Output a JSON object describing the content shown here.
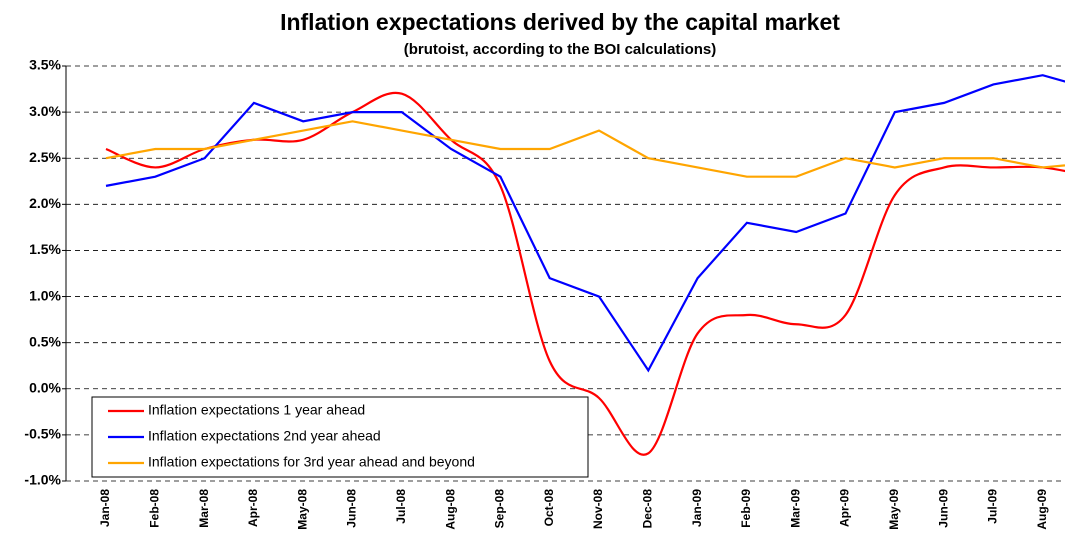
{
  "chart_data": {
    "type": "line",
    "title": "Inflation expectations derived by the capital market",
    "subtitle": "(brutoist, according to the BOI calculations)",
    "categories": [
      "Jan-08",
      "Feb-08",
      "Mar-08",
      "Apr-08",
      "May-08",
      "Jun-08",
      "Jul-08",
      "Aug-08",
      "Sep-08",
      "Oct-08",
      "Nov-08",
      "Dec-08",
      "Jan-09",
      "Feb-09",
      "Mar-09",
      "Apr-09",
      "May-09",
      "Jun-09",
      "Jul-09",
      "Aug-09",
      null
    ],
    "series": [
      {
        "name": "Inflation expectations 1 year ahead",
        "color": "#ff0000",
        "smooth": true,
        "values": [
          2.6,
          2.4,
          2.6,
          2.7,
          2.7,
          3.0,
          3.2,
          2.7,
          2.2,
          0.3,
          -0.1,
          -0.7,
          0.6,
          0.8,
          0.7,
          0.8,
          2.1,
          2.4,
          2.4,
          2.4,
          2.3
        ]
      },
      {
        "name": "Inflation expectations 2nd year ahead",
        "color": "#0000ff",
        "smooth": false,
        "values": [
          2.2,
          2.3,
          2.5,
          3.1,
          2.9,
          3.0,
          3.0,
          2.6,
          2.3,
          1.2,
          1.0,
          0.2,
          1.2,
          1.8,
          1.7,
          1.9,
          3.0,
          3.1,
          3.3,
          3.4,
          3.25
        ]
      },
      {
        "name": "Inflation expectations for 3rd year ahead and beyond",
        "color": "#ffa500",
        "smooth": false,
        "values": [
          2.5,
          2.6,
          2.6,
          2.7,
          2.8,
          2.9,
          2.8,
          2.7,
          2.6,
          2.6,
          2.8,
          2.5,
          2.4,
          2.3,
          2.3,
          2.5,
          2.4,
          2.5,
          2.5,
          2.4,
          2.45
        ]
      }
    ],
    "ylim": [
      -1.0,
      3.5
    ],
    "yticks": [
      {
        "value": -1.0,
        "label": "-1.0%"
      },
      {
        "value": -0.5,
        "label": "-0.5%"
      },
      {
        "value": 0.0,
        "label": "0.0%"
      },
      {
        "value": 0.5,
        "label": "0.5%"
      },
      {
        "value": 1.0,
        "label": "1.0%"
      },
      {
        "value": 1.5,
        "label": "1.5%"
      },
      {
        "value": 2.0,
        "label": "2.0%"
      },
      {
        "value": 2.5,
        "label": "2.5%"
      },
      {
        "value": 3.0,
        "label": "3.0%"
      },
      {
        "value": 3.5,
        "label": "3.5%"
      }
    ],
    "grid": true,
    "legend": "lower left"
  }
}
